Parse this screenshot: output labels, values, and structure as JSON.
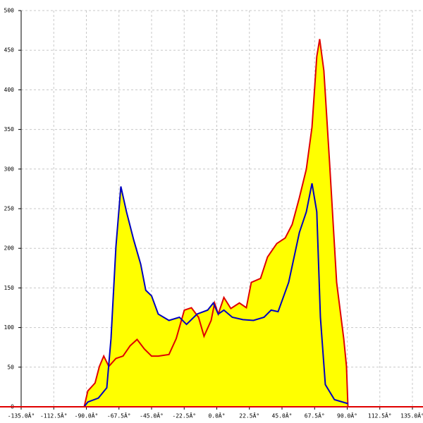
{
  "chart_data": {
    "type": "area-line",
    "xlim": [
      -135,
      135
    ],
    "ylim": [
      0,
      500
    ],
    "xticks": [
      {
        "value": -135,
        "label": "-135.0Â°"
      },
      {
        "value": -112.5,
        "label": "-112.5Â°"
      },
      {
        "value": -90,
        "label": "-90.0Â°"
      },
      {
        "value": -67.5,
        "label": "-67.5Â°"
      },
      {
        "value": -45,
        "label": "-45.0Â°"
      },
      {
        "value": -22.5,
        "label": "-22.5Â°"
      },
      {
        "value": 0,
        "label": "0.0Â°"
      },
      {
        "value": 22.5,
        "label": "22.5Â°"
      },
      {
        "value": 45,
        "label": "45.0Â°"
      },
      {
        "value": 67.5,
        "label": "67.5Â°"
      },
      {
        "value": 90,
        "label": "90.0Â°"
      },
      {
        "value": 112.5,
        "label": "112.5Â°"
      },
      {
        "value": 135,
        "label": "135.0Â°"
      }
    ],
    "yticks": [
      0,
      50,
      100,
      150,
      200,
      250,
      300,
      350,
      400,
      450,
      500
    ],
    "grid": true,
    "fill_color": "#ffff00",
    "axis_color": "#e00000",
    "series": [
      {
        "color": "#e00000",
        "x": [
          -91.5,
          -89,
          -84,
          -81,
          -78,
          -74.5,
          -69.6,
          -64.7,
          -59.8,
          -55,
          -50,
          -45,
          -40.4,
          -33,
          -28,
          -22.4,
          -17.5,
          -12.6,
          -8.8,
          -3.9,
          -1.5,
          1,
          4.9,
          9.7,
          15.6,
          20.4,
          23.8,
          30.2,
          35,
          41.4,
          47.2,
          52,
          57,
          61.8,
          65.7,
          69,
          71,
          73.9,
          77.8,
          82.7,
          87.6,
          89.5,
          90.5
        ],
        "values": [
          0,
          20,
          30,
          51,
          64,
          51,
          61,
          64,
          77,
          85,
          73,
          64,
          64,
          66,
          86,
          122,
          125,
          113,
          89,
          109,
          131,
          117,
          138,
          124,
          131,
          125,
          157,
          162,
          189,
          206,
          213,
          230,
          264,
          300,
          353,
          442,
          464,
          424,
          309,
          157,
          86,
          51,
          0
        ]
      },
      {
        "color": "#0000c0",
        "x": [
          -91.5,
          -89,
          -81.7,
          -75.9,
          -73,
          -69.6,
          -66.2,
          -62.3,
          -57.4,
          -52.5,
          -49,
          -45,
          -40.4,
          -33,
          -25.8,
          -20.9,
          -13.6,
          -6.3,
          -2.4,
          1,
          4.9,
          10.7,
          18,
          25.3,
          32.6,
          37.5,
          42.3,
          49.6,
          57,
          61.8,
          65.7,
          69,
          71.5,
          74.9,
          81.2,
          90.5
        ],
        "values": [
          0,
          6,
          11,
          24,
          86,
          202,
          278,
          246,
          211,
          180,
          147,
          140,
          117,
          109,
          113,
          104,
          117,
          122,
          131,
          117,
          122,
          113,
          110,
          109,
          113,
          122,
          120,
          157,
          220,
          246,
          282,
          246,
          113,
          28,
          9,
          4
        ]
      }
    ]
  }
}
